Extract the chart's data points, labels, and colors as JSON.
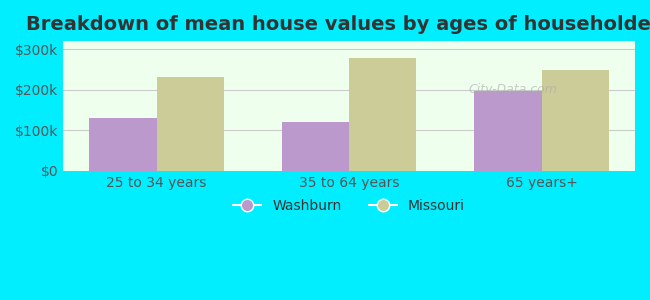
{
  "title": "Breakdown of mean house values by ages of householders",
  "categories": [
    "25 to 34 years",
    "35 to 64 years",
    "65 years+"
  ],
  "washburn_values": [
    130000,
    120000,
    197000
  ],
  "missouri_values": [
    232000,
    278000,
    248000
  ],
  "washburn_color": "#bb99cc",
  "missouri_color": "#cccc99",
  "background_outer": "#00eeff",
  "background_inner": "#eeffee",
  "ylim": [
    0,
    320000
  ],
  "yticks": [
    0,
    100000,
    200000,
    300000
  ],
  "ytick_labels": [
    "$0",
    "$100k",
    "$200k",
    "$300k"
  ],
  "legend_labels": [
    "Washburn",
    "Missouri"
  ],
  "bar_width": 0.35,
  "title_fontsize": 14,
  "axis_label_fontsize": 10,
  "legend_fontsize": 10
}
